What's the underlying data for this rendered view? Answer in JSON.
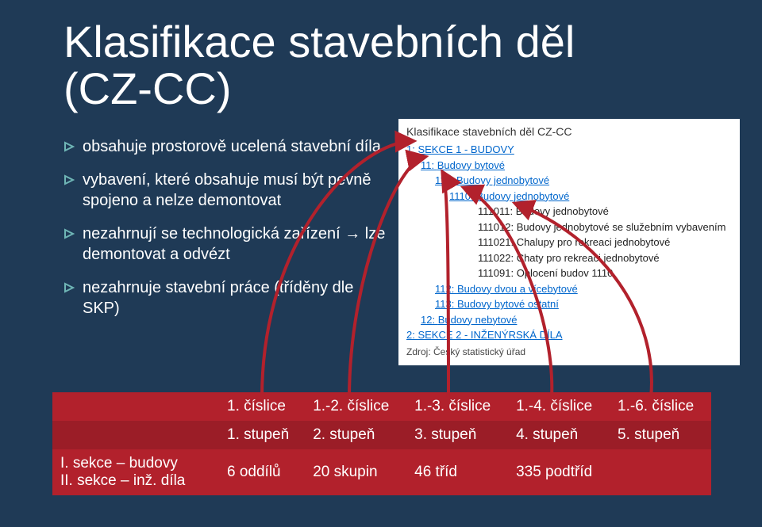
{
  "title_line1": "Klasifikace stavebních děl",
  "title_line2": "(CZ-CC)",
  "bullets": [
    "obsahuje prostorově ucelená stavební díla",
    "vybavení, které obsahuje musí být pevně spojeno a nelze demontovat",
    "nezahrnují se technologická zařízení → lze demontovat a odvézt",
    "nezahrnuje stavební práce (tříděny dle SKP)"
  ],
  "triangle_color": "#6fb6b6",
  "panel": {
    "title": "Klasifikace stavebních děl CZ-CC",
    "items": [
      {
        "indent": 1,
        "code": "1:",
        "label": "SEKCE 1 - BUDOVY",
        "link": true
      },
      {
        "indent": 2,
        "code": "11:",
        "label": "Budovy bytové",
        "link": true
      },
      {
        "indent": 3,
        "code": "111:",
        "label": "Budovy jednobytové",
        "link": true
      },
      {
        "indent": 4,
        "code": "1110:",
        "label": "Budovy jednobytové",
        "link": true
      },
      {
        "indent": 5,
        "code": "111011:",
        "label": "Budovy jednobytové",
        "link": false
      },
      {
        "indent": 5,
        "code": "111012:",
        "label": "Budovy jednobytové se služebním vybavením",
        "link": false
      },
      {
        "indent": 5,
        "code": "111021:",
        "label": "Chalupy pro rekreaci jednobytové",
        "link": false
      },
      {
        "indent": 5,
        "code": "111022:",
        "label": "Chaty pro rekreaci jednobytové",
        "link": false
      },
      {
        "indent": 5,
        "code": "111091:",
        "label": "Oplocení budov 1110",
        "link": false
      },
      {
        "indent": 3,
        "code": "112:",
        "label": "Budovy dvou a vícebytové",
        "link": true
      },
      {
        "indent": 3,
        "code": "113:",
        "label": "Budovy bytové ostatní",
        "link": true
      },
      {
        "indent": 2,
        "code": "12:",
        "label": "Budovy nebytové",
        "link": true
      },
      {
        "indent": 1,
        "code": "2:",
        "label": "SEKCE 2 - INŽENÝRSKÁ DÍLA",
        "link": true
      }
    ],
    "source": "Zdroj: Český statistický úřad"
  },
  "table": {
    "rows": [
      [
        "",
        "1. číslice",
        "1.-2. číslice",
        "1.-3. číslice",
        "1.-4. číslice",
        "1.-6. číslice"
      ],
      [
        "",
        "1. stupeň",
        "2. stupeň",
        "3. stupeň",
        "4. stupeň",
        "5. stupeň"
      ],
      [
        "I. sekce – budovy\nII. sekce – inž. díla",
        "6 oddílů",
        "20 skupin",
        "46 tříd",
        "335 podtříd",
        ""
      ]
    ]
  },
  "arrow_color": "#b2212c",
  "arrow_width": 4
}
